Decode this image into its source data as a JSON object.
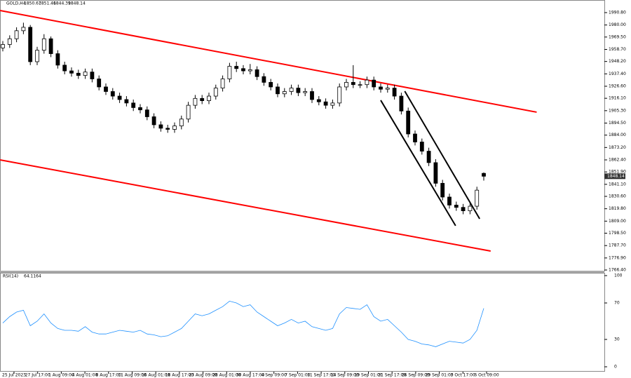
{
  "chart_data": [
    {
      "type": "candlestick",
      "symbol": "GOLD,H4",
      "ylim": [
        1766.4,
        1996.9
      ],
      "yticks": [
        {
          "value": 1990.8,
          "label": "1990.80"
        },
        {
          "value": 1980,
          "label": "1980.00"
        },
        {
          "value": 1969.5,
          "label": "1969.50"
        },
        {
          "value": 1958.7,
          "label": "1958.70"
        },
        {
          "value": 1948.2,
          "label": "1948.20"
        },
        {
          "value": 1937.4,
          "label": "1937.40"
        },
        {
          "value": 1926.6,
          "label": "1926.60"
        },
        {
          "value": 1916.1,
          "label": "1916.10"
        },
        {
          "value": 1905.3,
          "label": "1905.30"
        },
        {
          "value": 1894.5,
          "label": "1894.50"
        },
        {
          "value": 1884,
          "label": "1884.00"
        },
        {
          "value": 1873.2,
          "label": "1873.20"
        },
        {
          "value": 1862.4,
          "label": "1862.40"
        },
        {
          "value": 1851.9,
          "label": "1851.90"
        },
        {
          "value": 1841.1,
          "label": "1841.10"
        },
        {
          "value": 1830.6,
          "label": "1830.60"
        },
        {
          "value": 1819.8,
          "label": "1819.80"
        },
        {
          "value": 1809,
          "label": "1809.00"
        },
        {
          "value": 1798.5,
          "label": "1798.50"
        },
        {
          "value": 1787.7,
          "label": "1787.70"
        },
        {
          "value": 1776.9,
          "label": "1776.90"
        },
        {
          "value": 1766.4,
          "label": "1766.40"
        }
      ],
      "time_labels": [
        "25 Jul 2023",
        "27 Jul 17:00",
        "1 Aug 09:00",
        "4 Aug 01:00",
        "8 Aug 17:00",
        "11 Aug 09:00",
        "16 Aug 01:00",
        "18 Aug 17:00",
        "23 Aug 09:00",
        "28 Aug 01:00",
        "30 Aug 17:00",
        "4 Sep 09:00",
        "7 Sep 01:00",
        "11 Sep 17:00",
        "14 Sep 09:00",
        "19 Sep 01:00",
        "21 Sep 17:00",
        "26 Sep 09:00",
        "29 Sep 01:00",
        "3 Oct 17:00",
        "6 Oct 09:00"
      ],
      "ohlc": [
        [
          1960,
          1966,
          1957,
          1963
        ],
        [
          1963,
          1971,
          1960,
          1968
        ],
        [
          1968,
          1978,
          1965,
          1975
        ],
        [
          1975,
          1982,
          1972,
          1978
        ],
        [
          1978,
          1980,
          1945,
          1948
        ],
        [
          1948,
          1961,
          1945,
          1958
        ],
        [
          1958,
          1972,
          1955,
          1968
        ],
        [
          1968,
          1970,
          1952,
          1955
        ],
        [
          1955,
          1958,
          1942,
          1945
        ],
        [
          1945,
          1948,
          1937,
          1940
        ],
        [
          1940,
          1943,
          1935,
          1938
        ],
        [
          1938,
          1941,
          1933,
          1936
        ],
        [
          1936,
          1942,
          1933,
          1939
        ],
        [
          1939,
          1942,
          1930,
          1933
        ],
        [
          1933,
          1936,
          1923,
          1926
        ],
        [
          1926,
          1929,
          1919,
          1922
        ],
        [
          1922,
          1925,
          1915,
          1918
        ],
        [
          1918,
          1921,
          1912,
          1915
        ],
        [
          1915,
          1918,
          1909,
          1912
        ],
        [
          1912,
          1915,
          1905,
          1908
        ],
        [
          1908,
          1911,
          1903,
          1906
        ],
        [
          1906,
          1909,
          1897,
          1900
        ],
        [
          1900,
          1903,
          1890,
          1893
        ],
        [
          1893,
          1896,
          1887,
          1890
        ],
        [
          1890,
          1893,
          1886,
          1889
        ],
        [
          1889,
          1895,
          1886,
          1892
        ],
        [
          1892,
          1901,
          1889,
          1898
        ],
        [
          1898,
          1913,
          1895,
          1910
        ],
        [
          1910,
          1919,
          1907,
          1916
        ],
        [
          1916,
          1919,
          1911,
          1914
        ],
        [
          1914,
          1921,
          1911,
          1918
        ],
        [
          1918,
          1928,
          1915,
          1925
        ],
        [
          1925,
          1936,
          1922,
          1933
        ],
        [
          1933,
          1947,
          1930,
          1944
        ],
        [
          1944,
          1948,
          1939,
          1942
        ],
        [
          1942,
          1945,
          1937,
          1940
        ],
        [
          1940,
          1946,
          1937,
          1941
        ],
        [
          1941,
          1944,
          1932,
          1935
        ],
        [
          1935,
          1938,
          1927,
          1930
        ],
        [
          1930,
          1933,
          1923,
          1926
        ],
        [
          1926,
          1929,
          1917,
          1920
        ],
        [
          1920,
          1925,
          1917,
          1922
        ],
        [
          1922,
          1928,
          1919,
          1925
        ],
        [
          1925,
          1928,
          1918,
          1921
        ],
        [
          1921,
          1925,
          1918,
          1922
        ],
        [
          1922,
          1925,
          1912,
          1915
        ],
        [
          1915,
          1918,
          1910,
          1913
        ],
        [
          1913,
          1916,
          1907,
          1910
        ],
        [
          1910,
          1915,
          1907,
          1912
        ],
        [
          1912,
          1929,
          1909,
          1926
        ],
        [
          1926,
          1933,
          1923,
          1930
        ],
        [
          1930,
          1945,
          1925,
          1928
        ],
        [
          1928,
          1931,
          1925,
          1928
        ],
        [
          1928,
          1935,
          1925,
          1932
        ],
        [
          1932,
          1935,
          1923,
          1926
        ],
        [
          1926,
          1929,
          1921,
          1924
        ],
        [
          1924,
          1928,
          1921,
          1925
        ],
        [
          1925,
          1928,
          1915,
          1918
        ],
        [
          1918,
          1921,
          1902,
          1905
        ],
        [
          1905,
          1908,
          1882,
          1885
        ],
        [
          1885,
          1888,
          1875,
          1878
        ],
        [
          1878,
          1881,
          1867,
          1870
        ],
        [
          1870,
          1873,
          1857,
          1860
        ],
        [
          1860,
          1863,
          1839,
          1842
        ],
        [
          1842,
          1845,
          1827,
          1830
        ],
        [
          1830,
          1833,
          1820,
          1823
        ],
        [
          1823,
          1826,
          1818,
          1821
        ],
        [
          1821,
          1824,
          1815,
          1818
        ],
        [
          1818,
          1825,
          1815,
          1822
        ],
        [
          1822,
          1839,
          1819,
          1836
        ],
        [
          1850.67,
          1851.46,
          1844.39,
          1848.14
        ]
      ],
      "lines": [
        {
          "color": "#ff0000",
          "x": [
            -0.4,
            77.7
          ],
          "y": [
            1992.6,
            1904.0
          ]
        },
        {
          "color": "#ff0000",
          "x": [
            -0.4,
            71
          ],
          "y": [
            1862.4,
            1782.9
          ]
        },
        {
          "color": "#000000",
          "x": [
            55,
            65.9
          ],
          "y": [
            1914.4,
            1805.0
          ]
        },
        {
          "color": "#000000",
          "x": [
            58.5,
            69.4
          ],
          "y": [
            1922.3,
            1811.0
          ]
        }
      ]
    },
    {
      "type": "line",
      "name": "RSI(14)",
      "color": "#1e90ff",
      "ylim": [
        0,
        100
      ],
      "yticks": [
        100,
        70,
        30,
        0
      ],
      "values": [
        48,
        55,
        60,
        62,
        45,
        50,
        58,
        48,
        42,
        40,
        40,
        39,
        44,
        38,
        36,
        36,
        38,
        40,
        39,
        38,
        40,
        36,
        35,
        33,
        34,
        38,
        42,
        50,
        58,
        56,
        58,
        62,
        66,
        72,
        70,
        66,
        68,
        60,
        55,
        50,
        45,
        48,
        52,
        48,
        50,
        44,
        42,
        40,
        42,
        58,
        65,
        64,
        63,
        68,
        55,
        50,
        52,
        45,
        38,
        30,
        28,
        25,
        24,
        22,
        25,
        28,
        27,
        26,
        30,
        40,
        64.1164
      ]
    }
  ]
}
